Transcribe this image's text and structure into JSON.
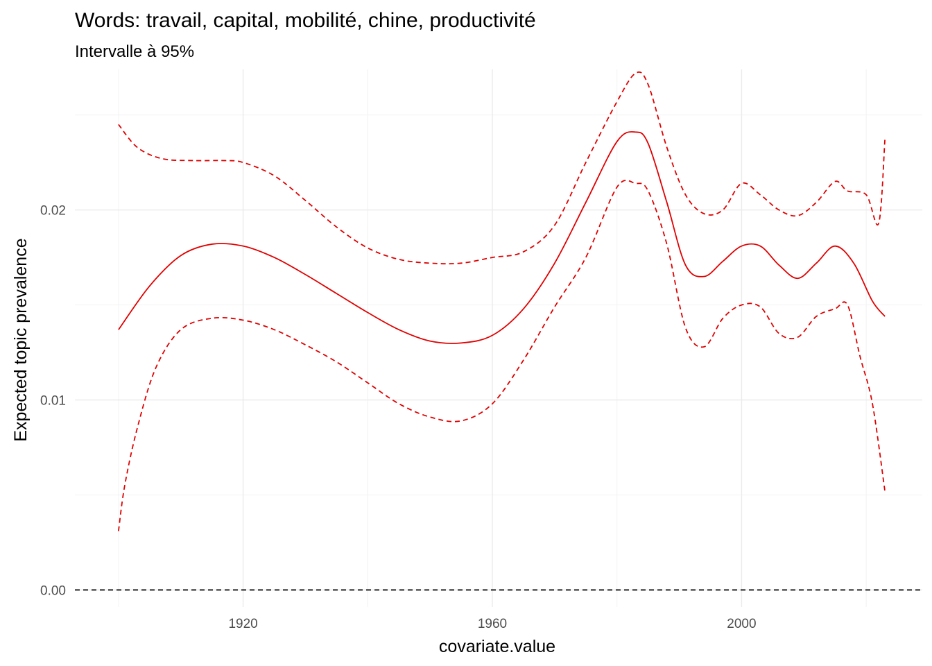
{
  "chart_data": {
    "type": "line",
    "title": "Words: travail, capital, mobilité, chine, productivité",
    "subtitle": "Intervalle à 95%",
    "xlabel": "covariate.value",
    "ylabel": "Expected topic prevalence",
    "xlim": [
      1893,
      2029
    ],
    "ylim": [
      -0.0009,
      0.0274
    ],
    "x_ticks": [
      1920,
      1960,
      2000
    ],
    "x_tick_labels": [
      "1920",
      "1960",
      "2000"
    ],
    "y_ticks": [
      0.0,
      0.01,
      0.02
    ],
    "y_tick_labels": [
      "0.00",
      "0.01",
      "0.02"
    ],
    "grid": true,
    "reference_line": {
      "y": 0.0,
      "style": "dashed",
      "color": "#000000"
    },
    "color": "#e00000",
    "series": [
      {
        "role": "estimate",
        "style": "solid",
        "x": [
          1900,
          1905,
          1910,
          1915,
          1920,
          1925,
          1930,
          1935,
          1940,
          1945,
          1950,
          1955,
          1960,
          1965,
          1970,
          1975,
          1980,
          1983,
          1985,
          1988,
          1991,
          1994,
          1997,
          2000,
          2003,
          2006,
          2009,
          2012,
          2015,
          2018,
          2021,
          2023
        ],
        "y": [
          0.0137,
          0.016,
          0.0176,
          0.0182,
          0.0181,
          0.0175,
          0.0166,
          0.0156,
          0.0146,
          0.0137,
          0.0131,
          0.013,
          0.0134,
          0.0148,
          0.0172,
          0.0204,
          0.0236,
          0.0241,
          0.0235,
          0.0204,
          0.0171,
          0.0165,
          0.0173,
          0.0181,
          0.0181,
          0.0171,
          0.0164,
          0.0172,
          0.0181,
          0.0172,
          0.0152,
          0.0144
        ]
      },
      {
        "role": "upper",
        "style": "dashed",
        "x": [
          1900,
          1903,
          1907,
          1912,
          1917,
          1920,
          1925,
          1930,
          1935,
          1940,
          1945,
          1950,
          1955,
          1960,
          1965,
          1970,
          1975,
          1980,
          1983,
          1985,
          1988,
          1991,
          1994,
          1997,
          2000,
          2003,
          2006,
          2009,
          2012,
          2015,
          2017,
          2020,
          2022,
          2023
        ],
        "y": [
          0.0245,
          0.0233,
          0.0227,
          0.0226,
          0.0226,
          0.0225,
          0.0218,
          0.0205,
          0.0191,
          0.018,
          0.0174,
          0.0172,
          0.0172,
          0.0175,
          0.0178,
          0.0192,
          0.0225,
          0.0257,
          0.0272,
          0.0266,
          0.0233,
          0.0208,
          0.0198,
          0.02,
          0.0214,
          0.0208,
          0.02,
          0.0197,
          0.0204,
          0.0215,
          0.021,
          0.0208,
          0.0193,
          0.0237
        ]
      },
      {
        "role": "lower",
        "style": "dashed",
        "x": [
          1900,
          1901,
          1903,
          1906,
          1910,
          1915,
          1920,
          1925,
          1930,
          1935,
          1940,
          1945,
          1950,
          1955,
          1960,
          1965,
          1970,
          1975,
          1980,
          1983,
          1985,
          1988,
          1991,
          1994,
          1997,
          2000,
          2003,
          2006,
          2009,
          2012,
          2015,
          2017,
          2019,
          2021,
          2023
        ],
        "y": [
          0.0031,
          0.0055,
          0.0085,
          0.0117,
          0.0137,
          0.0143,
          0.0142,
          0.0137,
          0.0129,
          0.012,
          0.0109,
          0.0098,
          0.0091,
          0.0089,
          0.0098,
          0.0121,
          0.0149,
          0.0175,
          0.0212,
          0.0214,
          0.021,
          0.0182,
          0.0138,
          0.0128,
          0.0143,
          0.015,
          0.0149,
          0.0135,
          0.0133,
          0.0144,
          0.0148,
          0.015,
          0.0123,
          0.0098,
          0.0052
        ]
      }
    ]
  }
}
